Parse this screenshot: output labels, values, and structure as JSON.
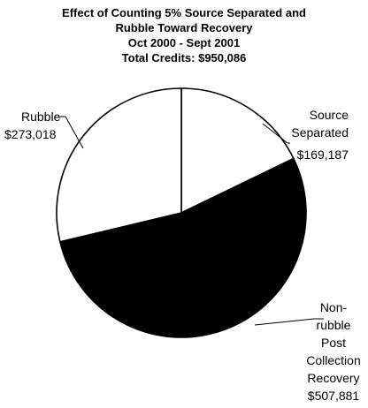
{
  "chart_data": {
    "type": "pie",
    "title": [
      "Effect of Counting 5% Source Separated and",
      "Rubble Toward Recovery",
      "Oct 2000 - Sept 2001",
      "Total Credits:  $950,086"
    ],
    "slices": [
      {
        "name": "Source Separated",
        "name_lines": [
          "Source",
          "Separated"
        ],
        "value": 169187,
        "value_label": "$169,187",
        "color": "#ffffff"
      },
      {
        "name": "Non-rubble Post Collection Recovery",
        "name_lines": [
          "Non-",
          "rubble",
          "Post",
          "Collection",
          "Recovery"
        ],
        "value": 507881,
        "value_label": "$507,881",
        "color": "#000000"
      },
      {
        "name": "Rubble",
        "name_lines": [
          "Rubble"
        ],
        "value": 273018,
        "value_label": "$273,018",
        "color": "#ffffff"
      }
    ],
    "start_angle": "12 o'clock",
    "direction": "clockwise"
  }
}
